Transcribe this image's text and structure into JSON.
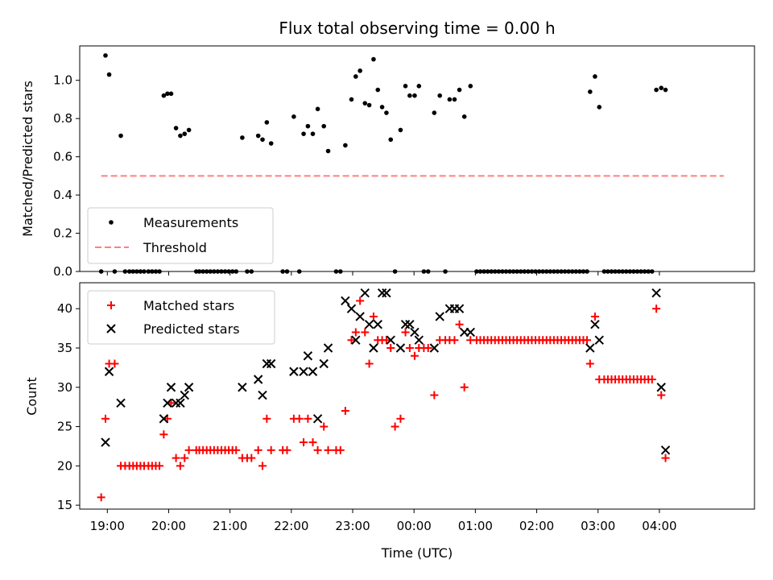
{
  "chart_data": {
    "type": "scatter",
    "title": "Flux total observing time = 0.00 h",
    "xlabel": "Time (UTC)",
    "x_ticks": [
      "19:00",
      "20:00",
      "21:00",
      "22:00",
      "23:00",
      "00:00",
      "01:00",
      "02:00",
      "03:00",
      "04:00"
    ],
    "x_unit": "hours since 18:00 UTC",
    "xlim": [
      0.55,
      11.55
    ],
    "top": {
      "ylabel": "Matched/Predicted stars",
      "ylim": [
        0,
        1.18
      ],
      "yticks": [
        "0.0",
        "0.2",
        "0.4",
        "0.6",
        "0.8",
        "1.0"
      ],
      "legend_position": "lower-left",
      "colors": {
        "measurements": "#000000",
        "threshold": "#ff7f7f"
      },
      "measurements_label": "Measurements",
      "threshold_label": "Threshold",
      "threshold": {
        "value": 0.5,
        "x_start": 0.9,
        "x_end": 11.05
      },
      "measurements": [
        [
          0.9,
          0
        ],
        [
          0.97,
          1.13
        ],
        [
          1.03,
          1.03
        ],
        [
          1.12,
          0
        ],
        [
          1.22,
          0.71
        ],
        [
          1.29,
          0
        ],
        [
          1.36,
          0
        ],
        [
          1.42,
          0
        ],
        [
          1.48,
          0
        ],
        [
          1.54,
          0
        ],
        [
          1.6,
          0
        ],
        [
          1.67,
          0
        ],
        [
          1.73,
          0
        ],
        [
          1.79,
          0
        ],
        [
          1.85,
          0
        ],
        [
          1.92,
          0.92
        ],
        [
          1.98,
          0.93
        ],
        [
          2.04,
          0.93
        ],
        [
          2.12,
          0.75
        ],
        [
          2.19,
          0.71
        ],
        [
          2.26,
          0.72
        ],
        [
          2.33,
          0.74
        ],
        [
          2.45,
          0
        ],
        [
          2.5,
          0
        ],
        [
          2.56,
          0
        ],
        [
          2.62,
          0
        ],
        [
          2.68,
          0
        ],
        [
          2.74,
          0
        ],
        [
          2.8,
          0
        ],
        [
          2.86,
          0
        ],
        [
          2.92,
          0
        ],
        [
          2.98,
          0
        ],
        [
          3.04,
          0
        ],
        [
          3.1,
          0
        ],
        [
          3.2,
          0.7
        ],
        [
          3.28,
          0
        ],
        [
          3.35,
          0
        ],
        [
          3.46,
          0.71
        ],
        [
          3.53,
          0.69
        ],
        [
          3.6,
          0.78
        ],
        [
          3.67,
          0.67
        ],
        [
          3.86,
          0
        ],
        [
          3.93,
          0
        ],
        [
          4.04,
          0.81
        ],
        [
          4.13,
          0
        ],
        [
          4.2,
          0.72
        ],
        [
          4.27,
          0.76
        ],
        [
          4.35,
          0.72
        ],
        [
          4.43,
          0.85
        ],
        [
          4.53,
          0.76
        ],
        [
          4.6,
          0.63
        ],
        [
          4.73,
          0
        ],
        [
          4.8,
          0
        ],
        [
          4.88,
          0.66
        ],
        [
          4.98,
          0.9
        ],
        [
          5.05,
          1.02
        ],
        [
          5.12,
          1.05
        ],
        [
          5.2,
          0.88
        ],
        [
          5.27,
          0.87
        ],
        [
          5.34,
          1.11
        ],
        [
          5.41,
          0.95
        ],
        [
          5.48,
          0.86
        ],
        [
          5.55,
          0.83
        ],
        [
          5.62,
          0.69
        ],
        [
          5.69,
          0
        ],
        [
          5.78,
          0.74
        ],
        [
          5.86,
          0.97
        ],
        [
          5.93,
          0.92
        ],
        [
          6.01,
          0.92
        ],
        [
          6.08,
          0.97
        ],
        [
          6.16,
          0
        ],
        [
          6.23,
          0
        ],
        [
          6.33,
          0.83
        ],
        [
          6.42,
          0.92
        ],
        [
          6.51,
          0
        ],
        [
          6.58,
          0.9
        ],
        [
          6.66,
          0.9
        ],
        [
          6.74,
          0.95
        ],
        [
          6.82,
          0.81
        ],
        [
          6.92,
          0.97
        ],
        [
          7.02,
          0
        ],
        [
          7.08,
          0
        ],
        [
          7.14,
          0
        ],
        [
          7.2,
          0
        ],
        [
          7.26,
          0
        ],
        [
          7.32,
          0
        ],
        [
          7.38,
          0
        ],
        [
          7.44,
          0
        ],
        [
          7.5,
          0
        ],
        [
          7.56,
          0
        ],
        [
          7.62,
          0
        ],
        [
          7.68,
          0
        ],
        [
          7.74,
          0
        ],
        [
          7.8,
          0
        ],
        [
          7.86,
          0
        ],
        [
          7.92,
          0
        ],
        [
          7.98,
          0
        ],
        [
          8.04,
          0
        ],
        [
          8.1,
          0
        ],
        [
          8.16,
          0
        ],
        [
          8.22,
          0
        ],
        [
          8.28,
          0
        ],
        [
          8.34,
          0
        ],
        [
          8.4,
          0
        ],
        [
          8.46,
          0
        ],
        [
          8.52,
          0
        ],
        [
          8.58,
          0
        ],
        [
          8.64,
          0
        ],
        [
          8.7,
          0
        ],
        [
          8.76,
          0
        ],
        [
          8.82,
          0
        ],
        [
          8.87,
          0.94
        ],
        [
          8.95,
          1.02
        ],
        [
          9.02,
          0.86
        ],
        [
          9.1,
          0
        ],
        [
          9.16,
          0
        ],
        [
          9.22,
          0
        ],
        [
          9.28,
          0
        ],
        [
          9.34,
          0
        ],
        [
          9.4,
          0
        ],
        [
          9.46,
          0
        ],
        [
          9.52,
          0
        ],
        [
          9.58,
          0
        ],
        [
          9.64,
          0
        ],
        [
          9.7,
          0
        ],
        [
          9.76,
          0
        ],
        [
          9.82,
          0
        ],
        [
          9.88,
          0
        ],
        [
          9.95,
          0.95
        ],
        [
          10.03,
          0.96
        ],
        [
          10.1,
          0.95
        ]
      ]
    },
    "bottom": {
      "ylabel": "Count",
      "ylim": [
        14.5,
        43.3
      ],
      "yticks": [
        "15",
        "20",
        "25",
        "30",
        "35",
        "40"
      ],
      "legend_position": "top-left",
      "colors": {
        "matched": "#ff0000",
        "predicted": "#000000"
      },
      "matched_label": "Matched stars",
      "predicted_label": "Predicted stars",
      "matched": [
        [
          0.9,
          16
        ],
        [
          0.97,
          26
        ],
        [
          1.03,
          33
        ],
        [
          1.12,
          33
        ],
        [
          1.22,
          20
        ],
        [
          1.29,
          20
        ],
        [
          1.36,
          20
        ],
        [
          1.42,
          20
        ],
        [
          1.48,
          20
        ],
        [
          1.54,
          20
        ],
        [
          1.6,
          20
        ],
        [
          1.67,
          20
        ],
        [
          1.73,
          20
        ],
        [
          1.79,
          20
        ],
        [
          1.85,
          20
        ],
        [
          1.92,
          24
        ],
        [
          1.98,
          26
        ],
        [
          2.04,
          28
        ],
        [
          2.12,
          21
        ],
        [
          2.19,
          20
        ],
        [
          2.26,
          21
        ],
        [
          2.33,
          22
        ],
        [
          2.45,
          22
        ],
        [
          2.5,
          22
        ],
        [
          2.56,
          22
        ],
        [
          2.62,
          22
        ],
        [
          2.68,
          22
        ],
        [
          2.74,
          22
        ],
        [
          2.8,
          22
        ],
        [
          2.86,
          22
        ],
        [
          2.92,
          22
        ],
        [
          2.98,
          22
        ],
        [
          3.04,
          22
        ],
        [
          3.1,
          22
        ],
        [
          3.2,
          21
        ],
        [
          3.28,
          21
        ],
        [
          3.35,
          21
        ],
        [
          3.46,
          22
        ],
        [
          3.53,
          20
        ],
        [
          3.6,
          26
        ],
        [
          3.67,
          22
        ],
        [
          3.86,
          22
        ],
        [
          3.93,
          22
        ],
        [
          4.04,
          26
        ],
        [
          4.13,
          26
        ],
        [
          4.2,
          23
        ],
        [
          4.27,
          26
        ],
        [
          4.35,
          23
        ],
        [
          4.43,
          22
        ],
        [
          4.53,
          25
        ],
        [
          4.6,
          22
        ],
        [
          4.73,
          22
        ],
        [
          4.8,
          22
        ],
        [
          4.88,
          27
        ],
        [
          4.98,
          36
        ],
        [
          5.05,
          37
        ],
        [
          5.12,
          41
        ],
        [
          5.2,
          37
        ],
        [
          5.27,
          33
        ],
        [
          5.34,
          39
        ],
        [
          5.41,
          36
        ],
        [
          5.48,
          36
        ],
        [
          5.55,
          36
        ],
        [
          5.62,
          35
        ],
        [
          5.69,
          25
        ],
        [
          5.78,
          26
        ],
        [
          5.86,
          37
        ],
        [
          5.93,
          35
        ],
        [
          6.01,
          34
        ],
        [
          6.08,
          35
        ],
        [
          6.16,
          35
        ],
        [
          6.23,
          35
        ],
        [
          6.33,
          29
        ],
        [
          6.42,
          36
        ],
        [
          6.51,
          36
        ],
        [
          6.58,
          36
        ],
        [
          6.66,
          36
        ],
        [
          6.74,
          38
        ],
        [
          6.82,
          30
        ],
        [
          6.92,
          36
        ],
        [
          7.02,
          36
        ],
        [
          7.08,
          36
        ],
        [
          7.14,
          36
        ],
        [
          7.2,
          36
        ],
        [
          7.26,
          36
        ],
        [
          7.32,
          36
        ],
        [
          7.38,
          36
        ],
        [
          7.44,
          36
        ],
        [
          7.5,
          36
        ],
        [
          7.56,
          36
        ],
        [
          7.62,
          36
        ],
        [
          7.68,
          36
        ],
        [
          7.74,
          36
        ],
        [
          7.8,
          36
        ],
        [
          7.86,
          36
        ],
        [
          7.92,
          36
        ],
        [
          7.98,
          36
        ],
        [
          8.04,
          36
        ],
        [
          8.1,
          36
        ],
        [
          8.16,
          36
        ],
        [
          8.22,
          36
        ],
        [
          8.28,
          36
        ],
        [
          8.34,
          36
        ],
        [
          8.4,
          36
        ],
        [
          8.46,
          36
        ],
        [
          8.52,
          36
        ],
        [
          8.58,
          36
        ],
        [
          8.64,
          36
        ],
        [
          8.7,
          36
        ],
        [
          8.76,
          36
        ],
        [
          8.82,
          36
        ],
        [
          8.87,
          33
        ],
        [
          8.95,
          39
        ],
        [
          9.02,
          31
        ],
        [
          9.1,
          31
        ],
        [
          9.16,
          31
        ],
        [
          9.22,
          31
        ],
        [
          9.28,
          31
        ],
        [
          9.34,
          31
        ],
        [
          9.4,
          31
        ],
        [
          9.46,
          31
        ],
        [
          9.52,
          31
        ],
        [
          9.58,
          31
        ],
        [
          9.64,
          31
        ],
        [
          9.7,
          31
        ],
        [
          9.76,
          31
        ],
        [
          9.82,
          31
        ],
        [
          9.88,
          31
        ],
        [
          9.95,
          40
        ],
        [
          10.03,
          29
        ],
        [
          10.1,
          21
        ]
      ],
      "predicted": [
        [
          0.97,
          23
        ],
        [
          1.03,
          32
        ],
        [
          1.22,
          28
        ],
        [
          1.92,
          26
        ],
        [
          1.98,
          28
        ],
        [
          2.04,
          30
        ],
        [
          2.12,
          28
        ],
        [
          2.19,
          28
        ],
        [
          2.26,
          29
        ],
        [
          2.33,
          30
        ],
        [
          3.2,
          30
        ],
        [
          3.46,
          31
        ],
        [
          3.53,
          29
        ],
        [
          3.6,
          33
        ],
        [
          3.67,
          33
        ],
        [
          4.04,
          32
        ],
        [
          4.2,
          32
        ],
        [
          4.27,
          34
        ],
        [
          4.35,
          32
        ],
        [
          4.43,
          26
        ],
        [
          4.53,
          33
        ],
        [
          4.6,
          35
        ],
        [
          4.88,
          41
        ],
        [
          4.98,
          40
        ],
        [
          5.05,
          36
        ],
        [
          5.12,
          39
        ],
        [
          5.2,
          42
        ],
        [
          5.27,
          38
        ],
        [
          5.34,
          35
        ],
        [
          5.41,
          38
        ],
        [
          5.48,
          42
        ],
        [
          5.55,
          42
        ],
        [
          5.62,
          36
        ],
        [
          5.78,
          35
        ],
        [
          5.86,
          38
        ],
        [
          5.93,
          38
        ],
        [
          6.01,
          37
        ],
        [
          6.08,
          36
        ],
        [
          6.33,
          35
        ],
        [
          6.42,
          39
        ],
        [
          6.58,
          40
        ],
        [
          6.66,
          40
        ],
        [
          6.74,
          40
        ],
        [
          6.82,
          37
        ],
        [
          6.92,
          37
        ],
        [
          8.87,
          35
        ],
        [
          8.95,
          38
        ],
        [
          9.02,
          36
        ],
        [
          9.95,
          42
        ],
        [
          10.03,
          30
        ],
        [
          10.1,
          22
        ]
      ]
    }
  }
}
